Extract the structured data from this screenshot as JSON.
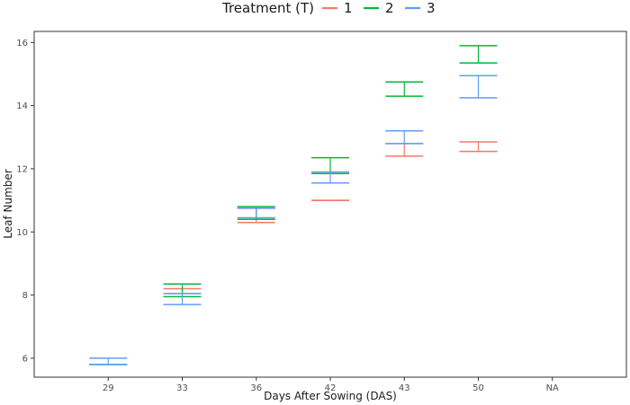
{
  "chart_data": {
    "type": "errorbar",
    "title": "",
    "xlabel": "Days After Sowing (DAS)",
    "ylabel": "Leaf Number",
    "categories": [
      "29",
      "33",
      "36",
      "42",
      "43",
      "50",
      "NA"
    ],
    "ylim": [
      5.4,
      16.35
    ],
    "yticks": [
      6,
      8,
      10,
      12,
      14,
      16
    ],
    "grid": false,
    "legend": {
      "title": "Treatment (T)",
      "position": "top"
    },
    "series": [
      {
        "name": "1",
        "color": "#F8766D",
        "intervals": [
          null,
          [
            8.05,
            8.2
          ],
          [
            10.3,
            10.75
          ],
          [
            11.0,
            11.0
          ],
          [
            12.4,
            12.8
          ],
          [
            12.55,
            12.85
          ],
          null
        ]
      },
      {
        "name": "2",
        "color": "#00BA38",
        "intervals": [
          [
            5.8,
            5.8
          ],
          [
            7.95,
            8.35
          ],
          [
            10.4,
            10.8
          ],
          [
            11.85,
            12.35
          ],
          [
            14.3,
            14.75
          ],
          [
            15.35,
            15.9
          ],
          null
        ]
      },
      {
        "name": "3",
        "color": "#619CFF",
        "intervals": [
          [
            5.8,
            6.0
          ],
          [
            7.7,
            8.05
          ],
          [
            10.45,
            10.75
          ],
          [
            11.55,
            11.9
          ],
          [
            12.8,
            13.2
          ],
          [
            14.25,
            14.95
          ],
          null
        ]
      }
    ]
  }
}
